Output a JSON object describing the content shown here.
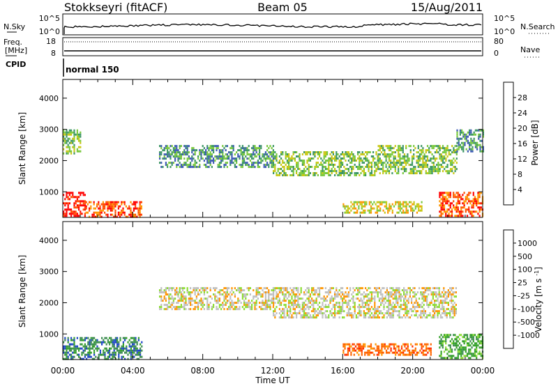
{
  "header": {
    "station": "Stokkseyri (fitACF)",
    "beam": "Beam 05",
    "date": "15/Aug/2011"
  },
  "nsky_panel": {
    "left_label": "N.Sky",
    "left_ticks": [
      "10^5",
      "10^0"
    ],
    "right_label": "N.Search",
    "right_ticks": [
      "10^5",
      "10^0"
    ]
  },
  "freq_panel": {
    "left_label_1": "Freq.",
    "left_label_2": "[MHz]",
    "left_ticks": [
      "18",
      "8"
    ],
    "right_label": "Nave",
    "right_ticks": [
      "80",
      "0"
    ]
  },
  "cpid_panel": {
    "label": "CPID",
    "mode": "normal 150"
  },
  "chart_data": [
    {
      "type": "heatmap",
      "quantity": "Power",
      "ylabel": "Slant Range [km]",
      "ylim": [
        180,
        4600
      ],
      "yticks": [
        1000,
        2000,
        3000,
        4000
      ],
      "xlabel": "",
      "xlim": [
        0,
        24
      ],
      "colorbar": {
        "label": "Power [dB]",
        "ticks": [
          "4",
          "8",
          "12",
          "16",
          "20",
          "24",
          "28"
        ],
        "colors": [
          "#0000ff",
          "#3c5ab4",
          "#3c9664",
          "#78c83c",
          "#c8c814",
          "#ff9600",
          "#ff5000",
          "#ff0000"
        ]
      },
      "features": [
        {
          "t": [
            0.0,
            1.3
          ],
          "range": [
            200,
            1000
          ],
          "level": 7
        },
        {
          "t": [
            1.3,
            4.5
          ],
          "range": [
            200,
            700
          ],
          "level": 6
        },
        {
          "t": [
            0.0,
            1.0
          ],
          "range": [
            2200,
            3000
          ],
          "level": 3
        },
        {
          "t": [
            5.5,
            12.0
          ],
          "range": [
            1800,
            2500
          ],
          "level": 2
        },
        {
          "t": [
            12.0,
            18.0
          ],
          "range": [
            1500,
            2300
          ],
          "level": 3
        },
        {
          "t": [
            18.0,
            22.5
          ],
          "range": [
            1600,
            2500
          ],
          "level": 3
        },
        {
          "t": [
            22.5,
            24.0
          ],
          "range": [
            2300,
            3000
          ],
          "level": 2
        },
        {
          "t": [
            16.0,
            20.5
          ],
          "range": [
            300,
            700
          ],
          "level": 4
        },
        {
          "t": [
            21.5,
            24.0
          ],
          "range": [
            200,
            1000
          ],
          "level": 6
        }
      ]
    },
    {
      "type": "heatmap",
      "quantity": "Velocity",
      "ylabel": "Slant Range [km]",
      "ylim": [
        180,
        4600
      ],
      "yticks": [
        1000,
        2000,
        3000,
        4000
      ],
      "xlabel": "Time UT",
      "xlim": [
        0,
        24
      ],
      "xticks": [
        "00:00",
        "04:00",
        "08:00",
        "12:00",
        "16:00",
        "20:00",
        "00:00"
      ],
      "colorbar": {
        "label": "Velocity [m s^-1]",
        "ticks": [
          "1000",
          "500",
          "100",
          "25",
          "-25",
          "-100",
          "-500",
          "-1000"
        ],
        "colors": [
          "#1e46c8",
          "#3c8c50",
          "#32a028",
          "#8cdc32",
          "#c0c0c0",
          "#ff9600",
          "#ff6400",
          "#ff2800",
          "#ff0000"
        ]
      },
      "features": [
        {
          "t": [
            0.0,
            4.5
          ],
          "range": [
            200,
            900
          ],
          "velocity": 500
        },
        {
          "t": [
            5.5,
            12.0
          ],
          "range": [
            1800,
            2500
          ],
          "velocity": 0
        },
        {
          "t": [
            12.0,
            22.5
          ],
          "range": [
            1500,
            2500
          ],
          "velocity": 0
        },
        {
          "t": [
            16.0,
            21.0
          ],
          "range": [
            300,
            700
          ],
          "velocity": -500
        },
        {
          "t": [
            21.5,
            24.0
          ],
          "range": [
            200,
            1000
          ],
          "velocity": 100
        }
      ]
    }
  ]
}
